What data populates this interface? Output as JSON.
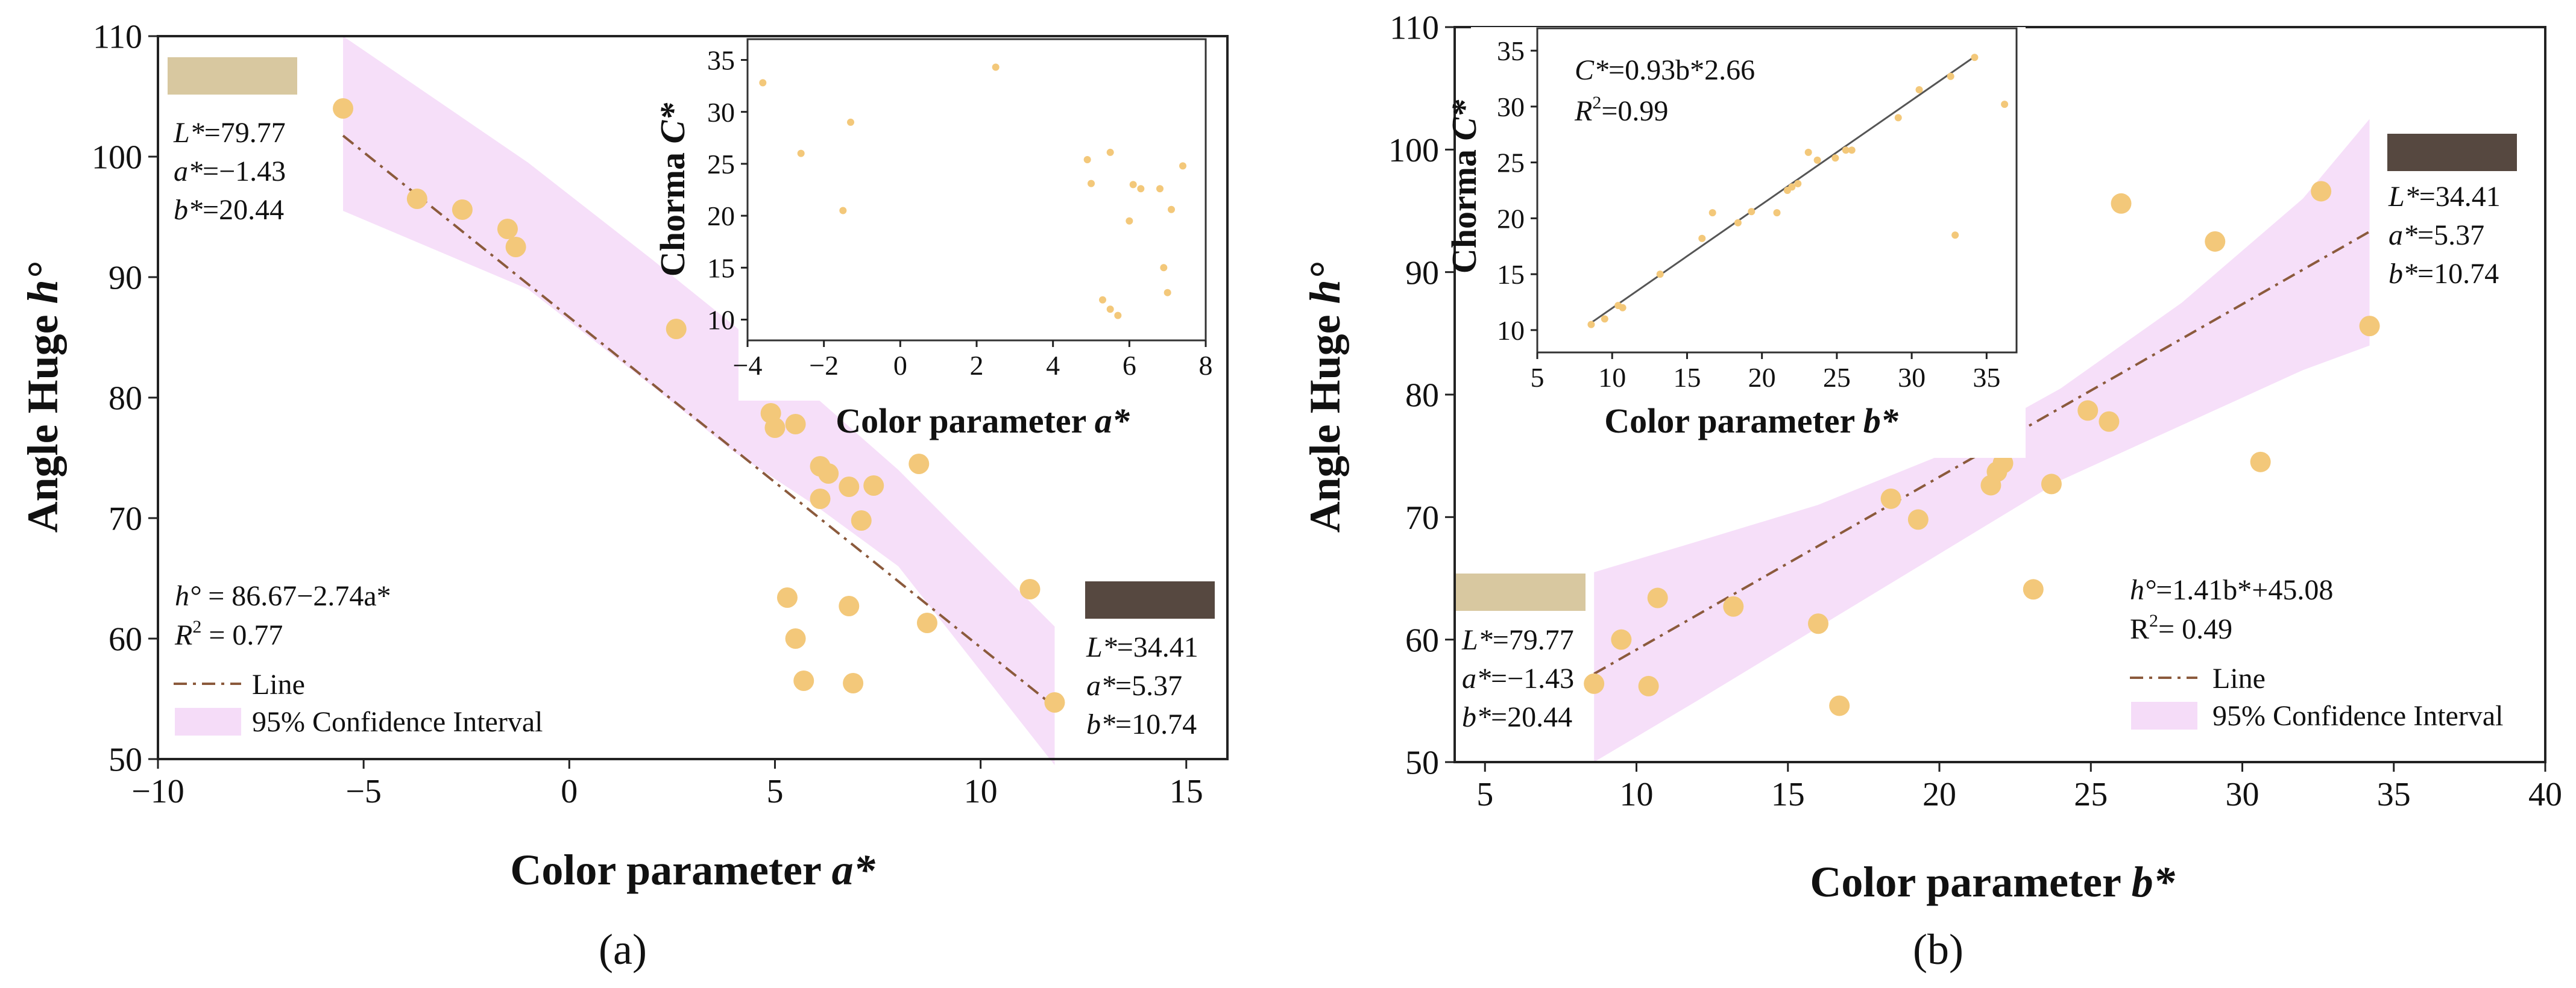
{
  "chart_data": [
    {
      "panel": "(a)",
      "type": "scatter",
      "xlabel_text": "Color parameter ",
      "xlabel_var": "a*",
      "ylabel_text": "Angle Huge ",
      "ylabel_var": "h°",
      "xlim": [
        -10,
        16
      ],
      "ylim": [
        50,
        110
      ],
      "xticks": [
        -10,
        -5,
        0,
        5,
        10,
        15
      ],
      "yticks": [
        50,
        60,
        70,
        80,
        90,
        100,
        110
      ],
      "colors": {
        "points": "#f3c87a",
        "line": "#8b5a3c",
        "band": "#f5dcf8",
        "light_swatch": "#d8c8a0",
        "dark_swatch": "#564840"
      },
      "points": [
        [
          -5.5,
          104.0
        ],
        [
          -3.7,
          96.5
        ],
        [
          -2.6,
          95.6
        ],
        [
          -1.5,
          94.0
        ],
        [
          -1.3,
          92.5
        ],
        [
          2.6,
          85.7
        ],
        [
          4.9,
          78.7
        ],
        [
          5.0,
          77.5
        ],
        [
          5.5,
          77.8
        ],
        [
          6.1,
          74.3
        ],
        [
          6.3,
          73.7
        ],
        [
          6.8,
          72.6
        ],
        [
          7.4,
          72.7
        ],
        [
          6.1,
          71.6
        ],
        [
          7.1,
          69.8
        ],
        [
          8.5,
          74.5
        ],
        [
          5.3,
          63.4
        ],
        [
          5.5,
          60.0
        ],
        [
          6.8,
          62.7
        ],
        [
          8.7,
          61.3
        ],
        [
          11.2,
          64.1
        ],
        [
          5.7,
          56.5
        ],
        [
          6.9,
          56.3
        ],
        [
          11.8,
          54.7
        ]
      ],
      "fit": {
        "intercept": 86.67,
        "slope": -2.74,
        "x_range": [
          -5.5,
          11.8
        ]
      },
      "band": {
        "x": [
          -5.5,
          -1,
          2,
          4,
          6,
          8,
          11.8
        ],
        "upper": [
          110,
          99.5,
          91.5,
          86,
          80,
          74,
          61
        ],
        "lower": [
          95.5,
          89,
          81,
          75.5,
          71,
          66,
          49.5
        ]
      },
      "equation": {
        "lhs": "h°",
        "rhs": " = 86.67−2.74a*"
      },
      "r2": {
        "label": "R",
        "sup": "2",
        "value": " = 0.77"
      },
      "legend": {
        "line": "Line",
        "band": "95% Confidence Interval"
      },
      "light_sample": {
        "L": "=79.77",
        "a": "=−1.43",
        "b": "=20.44"
      },
      "dark_sample": {
        "L": "=34.41",
        "a": "=5.37",
        "b": "=10.74"
      },
      "inset": {
        "type": "scatter",
        "xlabel_text": "Color parameter ",
        "xlabel_var": "a*",
        "ylabel_text": "Chorma ",
        "ylabel_var": "C*",
        "xlim": [
          -4,
          8
        ],
        "ylim": [
          8,
          37
        ],
        "xticks": [
          -4,
          -2,
          0,
          2,
          4,
          6,
          8
        ],
        "yticks": [
          10,
          15,
          20,
          25,
          30,
          35
        ],
        "points": [
          [
            -3.6,
            32.8
          ],
          [
            -2.6,
            26.0
          ],
          [
            -1.3,
            29.0
          ],
          [
            -1.5,
            20.5
          ],
          [
            2.5,
            34.3
          ],
          [
            4.9,
            25.4
          ],
          [
            5.0,
            23.1
          ],
          [
            5.5,
            26.1
          ],
          [
            6.1,
            23.0
          ],
          [
            6.3,
            22.6
          ],
          [
            6.8,
            22.6
          ],
          [
            7.4,
            24.8
          ],
          [
            6.0,
            19.5
          ],
          [
            7.1,
            20.6
          ],
          [
            5.3,
            11.9
          ],
          [
            5.5,
            11.0
          ],
          [
            5.7,
            10.4
          ],
          [
            6.9,
            15.0
          ],
          [
            7.0,
            12.6
          ]
        ]
      }
    },
    {
      "panel": "(b)",
      "type": "scatter",
      "xlabel_text": "Color parameter ",
      "xlabel_var": "b*",
      "ylabel_text": "Angle Huge ",
      "ylabel_var": "h°",
      "xlim": [
        4,
        40
      ],
      "ylim": [
        50,
        110
      ],
      "xticks": [
        5,
        10,
        15,
        20,
        25,
        30,
        35,
        40
      ],
      "yticks": [
        50,
        60,
        70,
        80,
        90,
        100,
        110
      ],
      "colors": {
        "points": "#f3c87a",
        "line": "#8b5a3c",
        "band": "#f5dcf8",
        "light_swatch": "#d8c8a0",
        "dark_swatch": "#564840"
      },
      "points": [
        [
          8.6,
          56.4
        ],
        [
          9.5,
          60.0
        ],
        [
          10.4,
          56.2
        ],
        [
          10.7,
          63.4
        ],
        [
          13.2,
          62.7
        ],
        [
          16.0,
          61.3
        ],
        [
          16.7,
          54.6
        ],
        [
          18.4,
          71.5
        ],
        [
          19.3,
          69.8
        ],
        [
          21.7,
          72.6
        ],
        [
          21.9,
          73.7
        ],
        [
          22.1,
          74.4
        ],
        [
          22.4,
          77.5
        ],
        [
          23.1,
          64.1
        ],
        [
          23.7,
          72.7
        ],
        [
          24.9,
          78.7
        ],
        [
          25.6,
          77.8
        ],
        [
          26.0,
          95.6
        ],
        [
          29.1,
          92.5
        ],
        [
          30.6,
          74.5
        ],
        [
          32.6,
          96.6
        ],
        [
          34.2,
          85.6
        ]
      ],
      "fit": {
        "intercept": 45.08,
        "slope": 1.41,
        "x_range": [
          8.6,
          34.2
        ]
      },
      "band": {
        "x": [
          8.6,
          12,
          16,
          20,
          24,
          28,
          32,
          34.2
        ],
        "upper": [
          65.5,
          68,
          71,
          75,
          80.5,
          87.5,
          96,
          102.5
        ],
        "lower": [
          50,
          55,
          61,
          67,
          73,
          77.5,
          82,
          84
        ]
      },
      "equation": {
        "lhs": "h°",
        "rhs": "=1.41b*+45.08"
      },
      "r2": {
        "label": "R",
        "sup": "2",
        "value": "= 0.49"
      },
      "legend": {
        "line": "Line",
        "band": "95% Confidence Interval"
      },
      "light_sample": {
        "L": "=79.77",
        "a": "=−1.43",
        "b": "=20.44"
      },
      "dark_sample": {
        "L": "=34.41",
        "a": "=5.37",
        "b": "=10.74"
      },
      "inset": {
        "type": "scatter",
        "xlabel_text": "Color parameter ",
        "xlabel_var": "b*",
        "ylabel_text": "Chorma ",
        "ylabel_var": "C*",
        "xlim": [
          5,
          37
        ],
        "ylim": [
          8,
          37
        ],
        "xticks": [
          5,
          10,
          15,
          20,
          25,
          30,
          35
        ],
        "yticks": [
          10,
          15,
          20,
          25,
          30,
          35
        ],
        "fit": {
          "intercept": 2.66,
          "slope": 0.93,
          "x_range": [
            8.6,
            34.2
          ]
        },
        "equation": {
          "lhs": "C*",
          "rhs": "=0.93b*2.66"
        },
        "r2": {
          "label": "R",
          "sup": "2",
          "value": "=0.99"
        },
        "points": [
          [
            8.6,
            10.5
          ],
          [
            9.5,
            11.0
          ],
          [
            10.4,
            12.2
          ],
          [
            10.7,
            12.0
          ],
          [
            13.2,
            15.0
          ],
          [
            16.0,
            18.2
          ],
          [
            16.7,
            20.5
          ],
          [
            18.4,
            19.6
          ],
          [
            19.3,
            20.6
          ],
          [
            21.0,
            20.5
          ],
          [
            21.7,
            22.5
          ],
          [
            22.0,
            22.8
          ],
          [
            22.4,
            23.1
          ],
          [
            23.1,
            25.9
          ],
          [
            23.7,
            25.2
          ],
          [
            24.9,
            25.4
          ],
          [
            25.6,
            26.1
          ],
          [
            26.0,
            26.1
          ],
          [
            29.1,
            29.0
          ],
          [
            30.5,
            31.5
          ],
          [
            32.6,
            32.7
          ],
          [
            34.2,
            34.4
          ],
          [
            32.9,
            18.5
          ],
          [
            36.2,
            30.2
          ]
        ]
      }
    }
  ]
}
